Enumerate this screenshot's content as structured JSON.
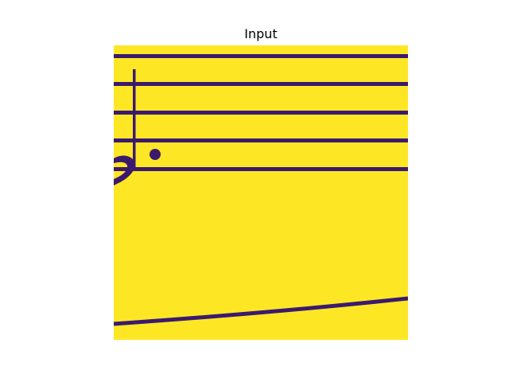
{
  "figure": {
    "title": "Input"
  },
  "colors": {
    "background": "#fde725",
    "ink": "#3b1a6e",
    "edge": "#21918c",
    "page": "#ffffff"
  }
}
